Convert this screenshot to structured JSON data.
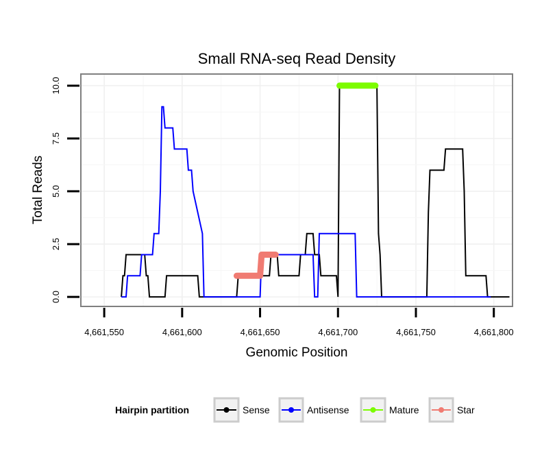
{
  "chart_data": {
    "type": "line",
    "title": "Small RNA-seq Read Density",
    "xlabel": "Genomic Position",
    "ylabel": "Total Reads",
    "xlim": [
      4661535,
      4661812
    ],
    "ylim": [
      -0.45,
      10.55
    ],
    "x_ticks": [
      4661550,
      4661600,
      4661650,
      4661700,
      4661750,
      4661800
    ],
    "x_tick_labels": [
      "4,661,550",
      "4,661,600",
      "4,661,650",
      "4,661,700",
      "4,661,750",
      "4,661,800"
    ],
    "y_ticks": [
      0,
      2.5,
      5,
      7.5,
      10
    ],
    "y_tick_labels": [
      "0.0",
      "2.5",
      "5.0",
      "7.5",
      "10.0"
    ],
    "grid": true,
    "legend": {
      "title": "Hairpin partition",
      "position": "bottom",
      "entries": [
        "Sense",
        "Antisense",
        "Mature",
        "Star"
      ]
    },
    "series": [
      {
        "name": "Sense",
        "color": "#000000",
        "style": "line",
        "x": [
          4661561,
          4661562,
          4661563,
          4661564,
          4661565,
          4661576,
          4661577,
          4661578,
          4661579,
          4661580,
          4661589,
          4661590,
          4661591,
          4661592,
          4661610,
          4661611,
          4661623,
          4661624,
          4661635,
          4661636,
          4661656,
          4661657,
          4661661,
          4661662,
          4661675,
          4661676,
          4661679,
          4661680,
          4661684,
          4661685,
          4661688,
          4661689,
          4661693,
          4661694,
          4661699,
          4661700,
          4661701,
          4661725,
          4661726,
          4661727,
          4661728,
          4661757,
          4661758,
          4661759,
          4661768,
          4661769,
          4661779,
          4661780,
          4661781,
          4661782,
          4661795,
          4661796,
          4661810
        ],
        "y": [
          0,
          1,
          1,
          2,
          2,
          2,
          1,
          1,
          0,
          0,
          0,
          1,
          1,
          1,
          1,
          0,
          0,
          0,
          0,
          1,
          1,
          2,
          2,
          1,
          1,
          2,
          2,
          3,
          3,
          2,
          2,
          1,
          1,
          1,
          1,
          0,
          10,
          10,
          3,
          2,
          0,
          0,
          4,
          6,
          6,
          7,
          7,
          7,
          5,
          1,
          1,
          0,
          0
        ]
      },
      {
        "name": "Antisense",
        "color": "#0000ff",
        "style": "line",
        "x": [
          4661561,
          4661564,
          4661565,
          4661573,
          4661574,
          4661581,
          4661582,
          4661585,
          4661586,
          4661587,
          4661588,
          4661589,
          4661591,
          4661592,
          4661594,
          4661595,
          4661603,
          4661604,
          4661606,
          4661607,
          4661613,
          4661614,
          4661615,
          4661650,
          4661651,
          4661684,
          4661685,
          4661687,
          4661688,
          4661711,
          4661712,
          4661798
        ],
        "y": [
          0,
          0,
          1,
          1,
          2,
          2,
          3,
          3,
          5,
          9,
          9,
          8,
          8,
          8,
          8,
          7,
          7,
          6,
          6,
          5,
          3,
          0,
          0,
          0,
          2,
          2,
          0,
          0,
          3,
          3,
          0,
          0
        ]
      },
      {
        "name": "Mature",
        "color": "#7cfc00",
        "style": "segment",
        "x": [
          4661701,
          4661724
        ],
        "y": [
          10,
          10
        ]
      },
      {
        "name": "Star",
        "color": "#f07b72",
        "style": "segment",
        "x": [
          4661635,
          4661650,
          4661651,
          4661660
        ],
        "y": [
          1,
          1,
          2,
          2
        ]
      }
    ]
  }
}
